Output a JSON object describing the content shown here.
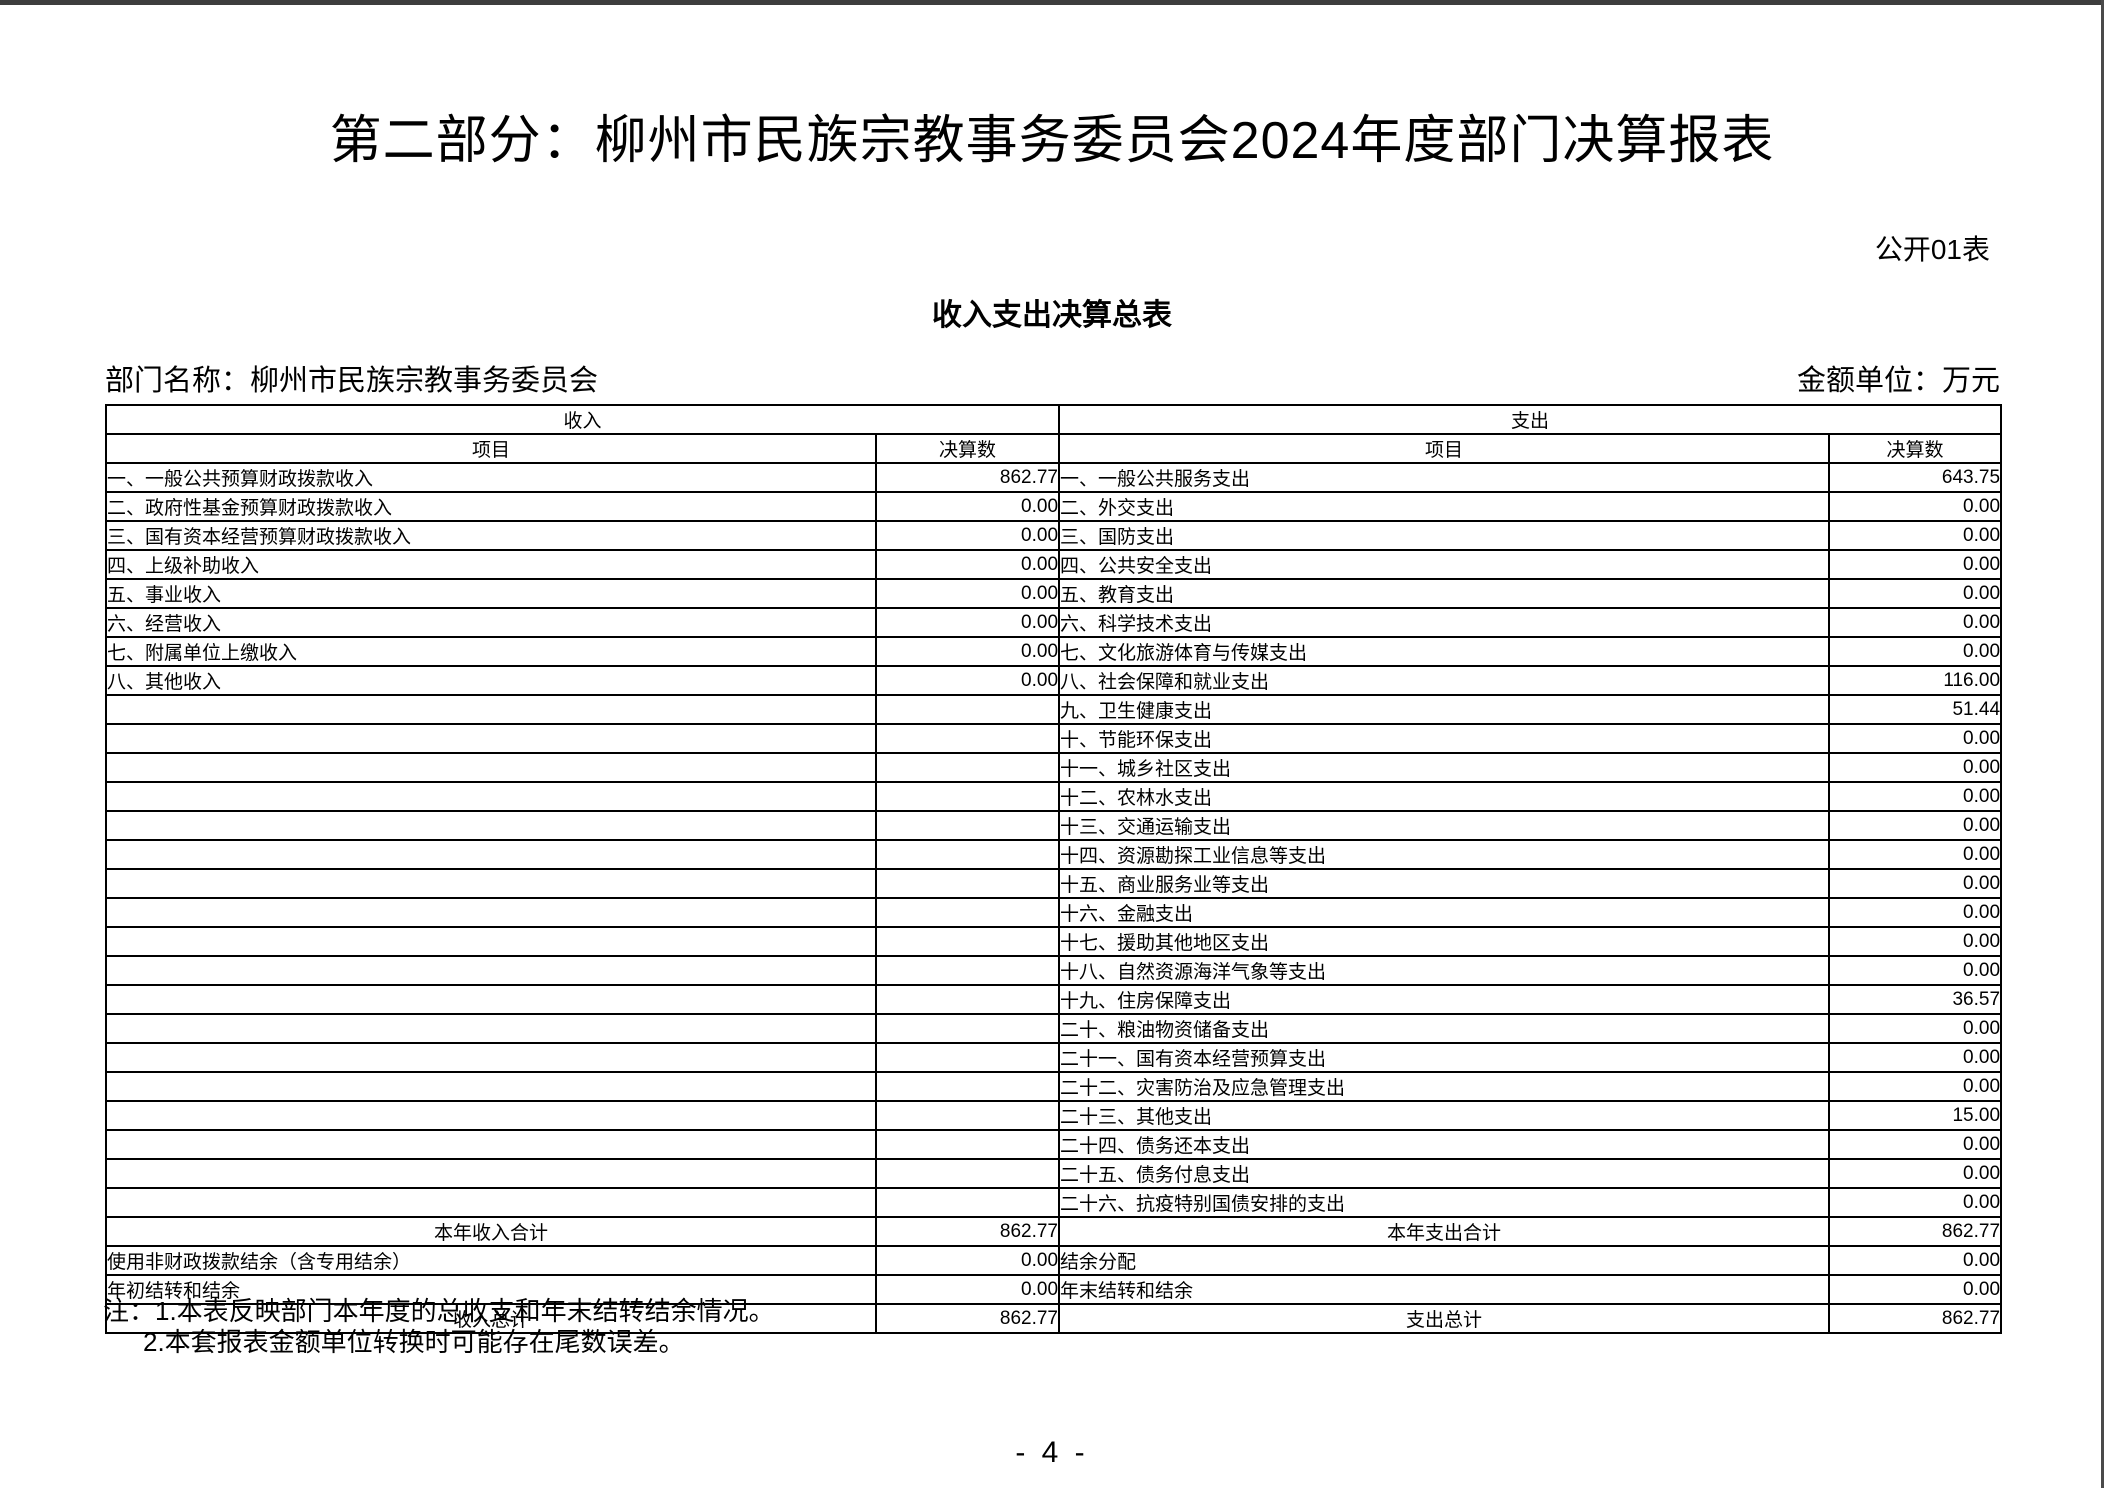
{
  "page": {
    "title": "第二部分：柳州市民族宗教事务委员会2024年度部门决算报表",
    "table_code": "公开01表",
    "table_title": "收入支出决算总表",
    "department_label": "部门名称：柳州市民族宗教事务委员会",
    "unit_label": "金额单位：万元",
    "page_number": "- 4 -"
  },
  "table": {
    "income_header": "收入",
    "expense_header": "支出",
    "item_header": "项目",
    "amount_header": "决算数",
    "rows": [
      {
        "income_item": "一、一般公共预算财政拨款收入",
        "income_value": "862.77",
        "expense_item": "一、一般公共服务支出",
        "expense_value": "643.75"
      },
      {
        "income_item": "二、政府性基金预算财政拨款收入",
        "income_value": "0.00",
        "expense_item": "二、外交支出",
        "expense_value": "0.00"
      },
      {
        "income_item": "三、国有资本经营预算财政拨款收入",
        "income_value": "0.00",
        "expense_item": "三、国防支出",
        "expense_value": "0.00"
      },
      {
        "income_item": "四、上级补助收入",
        "income_value": "0.00",
        "expense_item": "四、公共安全支出",
        "expense_value": "0.00"
      },
      {
        "income_item": "五、事业收入",
        "income_value": "0.00",
        "expense_item": "五、教育支出",
        "expense_value": "0.00"
      },
      {
        "income_item": "六、经营收入",
        "income_value": "0.00",
        "expense_item": "六、科学技术支出",
        "expense_value": "0.00"
      },
      {
        "income_item": "七、附属单位上缴收入",
        "income_value": "0.00",
        "expense_item": "七、文化旅游体育与传媒支出",
        "expense_value": "0.00"
      },
      {
        "income_item": "八、其他收入",
        "income_value": "0.00",
        "expense_item": "八、社会保障和就业支出",
        "expense_value": "116.00"
      },
      {
        "income_item": "",
        "income_value": "",
        "expense_item": "九、卫生健康支出",
        "expense_value": "51.44"
      },
      {
        "income_item": "",
        "income_value": "",
        "expense_item": "十、节能环保支出",
        "expense_value": "0.00"
      },
      {
        "income_item": "",
        "income_value": "",
        "expense_item": "十一、城乡社区支出",
        "expense_value": "0.00"
      },
      {
        "income_item": "",
        "income_value": "",
        "expense_item": "十二、农林水支出",
        "expense_value": "0.00"
      },
      {
        "income_item": "",
        "income_value": "",
        "expense_item": "十三、交通运输支出",
        "expense_value": "0.00"
      },
      {
        "income_item": "",
        "income_value": "",
        "expense_item": "十四、资源勘探工业信息等支出",
        "expense_value": "0.00"
      },
      {
        "income_item": "",
        "income_value": "",
        "expense_item": "十五、商业服务业等支出",
        "expense_value": "0.00"
      },
      {
        "income_item": "",
        "income_value": "",
        "expense_item": "十六、金融支出",
        "expense_value": "0.00"
      },
      {
        "income_item": "",
        "income_value": "",
        "expense_item": "十七、援助其他地区支出",
        "expense_value": "0.00"
      },
      {
        "income_item": "",
        "income_value": "",
        "expense_item": "十八、自然资源海洋气象等支出",
        "expense_value": "0.00"
      },
      {
        "income_item": "",
        "income_value": "",
        "expense_item": "十九、住房保障支出",
        "expense_value": "36.57"
      },
      {
        "income_item": "",
        "income_value": "",
        "expense_item": "二十、粮油物资储备支出",
        "expense_value": "0.00"
      },
      {
        "income_item": "",
        "income_value": "",
        "expense_item": "二十一、国有资本经营预算支出",
        "expense_value": "0.00"
      },
      {
        "income_item": "",
        "income_value": "",
        "expense_item": "二十二、灾害防治及应急管理支出",
        "expense_value": "0.00"
      },
      {
        "income_item": "",
        "income_value": "",
        "expense_item": "二十三、其他支出",
        "expense_value": "15.00"
      },
      {
        "income_item": "",
        "income_value": "",
        "expense_item": "二十四、债务还本支出",
        "expense_value": "0.00"
      },
      {
        "income_item": "",
        "income_value": "",
        "expense_item": "二十五、债务付息支出",
        "expense_value": "0.00"
      },
      {
        "income_item": "",
        "income_value": "",
        "expense_item": "二十六、抗疫特别国债安排的支出",
        "expense_value": "0.00"
      }
    ],
    "subtotal": {
      "income_label": "本年收入合计",
      "income_value": "862.77",
      "expense_label": "本年支出合计",
      "expense_value": "862.77"
    },
    "carryover_rows": [
      {
        "income_item": "使用非财政拨款结余（含专用结余）",
        "income_value": "0.00",
        "expense_item": "结余分配",
        "expense_value": "0.00"
      },
      {
        "income_item": "年初结转和结余",
        "income_value": "0.00",
        "expense_item": "年末结转和结余",
        "expense_value": "0.00"
      }
    ],
    "grand_total": {
      "income_label": "收入总计",
      "income_value": "862.77",
      "expense_label": "支出总计",
      "expense_value": "862.77"
    }
  },
  "notes": {
    "line1": "注：1.本表反映部门本年度的总收支和年末结转结余情况。",
    "line2": "2.本套报表金额单位转换时可能存在尾数误差。"
  }
}
